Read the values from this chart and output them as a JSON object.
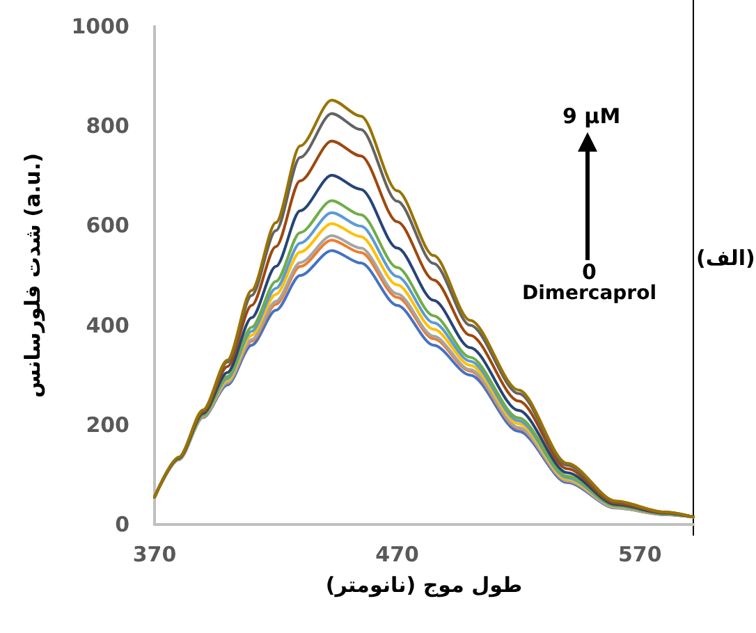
{
  "chart_data": {
    "type": "line",
    "xlabel": "طول موج (نانومتر)",
    "ylabel": "شدت فلورسانس (a.u.)",
    "x": [
      370,
      380,
      390,
      400,
      410,
      420,
      430,
      443,
      455,
      470,
      485,
      500,
      520,
      540,
      560,
      580,
      592
    ],
    "xlim": [
      370,
      592
    ],
    "xticks": [
      370,
      470,
      570
    ],
    "ylim": [
      0,
      1000
    ],
    "yticks": [
      0,
      200,
      400,
      600,
      800,
      1000
    ],
    "grid": false,
    "marker": "none",
    "line_style": "solid",
    "annotations": [
      "9 µM",
      "0",
      "Dimercaprol",
      "(الف)"
    ],
    "series": [
      {
        "color": "#4472c4",
        "values": [
          55,
          130,
          215,
          280,
          360,
          430,
          500,
          550,
          525,
          440,
          360,
          300,
          187,
          84,
          33,
          20,
          15
        ]
      },
      {
        "color": "#ed7d31",
        "values": [
          55,
          130,
          216,
          284,
          368,
          442,
          518,
          571,
          546,
          456,
          373,
          308,
          193,
          87,
          34,
          20,
          15
        ]
      },
      {
        "color": "#a5a5a5",
        "values": [
          55,
          131,
          217,
          285,
          371,
          448,
          526,
          580,
          555,
          463,
          378,
          311,
          195,
          88,
          34,
          21,
          15
        ]
      },
      {
        "color": "#ffc000",
        "values": [
          55,
          131,
          218,
          289,
          380,
          462,
          547,
          604,
          578,
          481,
          392,
          320,
          202,
          91,
          36,
          21,
          15
        ]
      },
      {
        "color": "#5b9bd5",
        "values": [
          55,
          131,
          219,
          293,
          388,
          474,
          565,
          626,
          599,
          498,
          405,
          328,
          208,
          94,
          37,
          21,
          15
        ]
      },
      {
        "color": "#70ad47",
        "values": [
          55,
          132,
          220,
          297,
          396,
          488,
          586,
          650,
          622,
          516,
          419,
          336,
          214,
          97,
          38,
          22,
          15
        ]
      },
      {
        "color": "#264478",
        "values": [
          55,
          133,
          223,
          305,
          415,
          518,
          630,
          701,
          673,
          555,
          450,
          355,
          229,
          104,
          40,
          23,
          15
        ]
      },
      {
        "color": "#9e480e",
        "values": [
          55,
          134,
          226,
          317,
          440,
          558,
          690,
          770,
          740,
          608,
          491,
          380,
          248,
          112,
          43,
          24,
          15
        ]
      },
      {
        "color": "#636363",
        "values": [
          55,
          135,
          229,
          326,
          460,
          590,
          737,
          825,
          793,
          649,
          524,
          400,
          263,
          119,
          46,
          25,
          15
        ]
      },
      {
        "color": "#997300",
        "values": [
          55,
          135,
          230,
          330,
          470,
          606,
          760,
          852,
          820,
          670,
          540,
          410,
          270,
          123,
          47,
          25,
          15
        ]
      }
    ]
  }
}
